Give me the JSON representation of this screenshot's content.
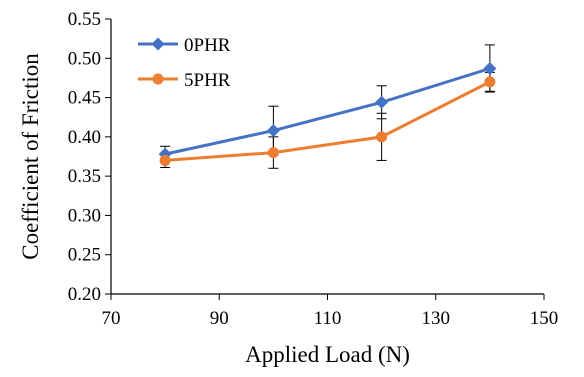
{
  "chart_data": {
    "type": "line",
    "xlabel": "Applied Load (N)",
    "ylabel": "Coefficient of Friction",
    "xlim": [
      70,
      150
    ],
    "ylim": [
      0.2,
      0.55
    ],
    "xticks": [
      "70",
      "90",
      "110",
      "130",
      "150"
    ],
    "yticks": [
      "0.20",
      "0.25",
      "0.30",
      "0.35",
      "0.40",
      "0.45",
      "0.50",
      "0.55"
    ],
    "x": [
      80,
      100,
      120,
      140
    ],
    "grid": false,
    "legend_position": "top-left",
    "series": [
      {
        "name": "0PHR",
        "values": [
          0.378,
          0.408,
          0.444,
          0.487
        ],
        "error": [
          0.01,
          0.031,
          0.021,
          0.03
        ],
        "color": "#4472C4",
        "marker": "diamond"
      },
      {
        "name": "5PHR",
        "values": [
          0.37,
          0.38,
          0.4,
          0.47
        ],
        "error": [
          0.009,
          0.02,
          0.03,
          0.012
        ],
        "color": "#ED7D31",
        "marker": "circle"
      }
    ]
  }
}
